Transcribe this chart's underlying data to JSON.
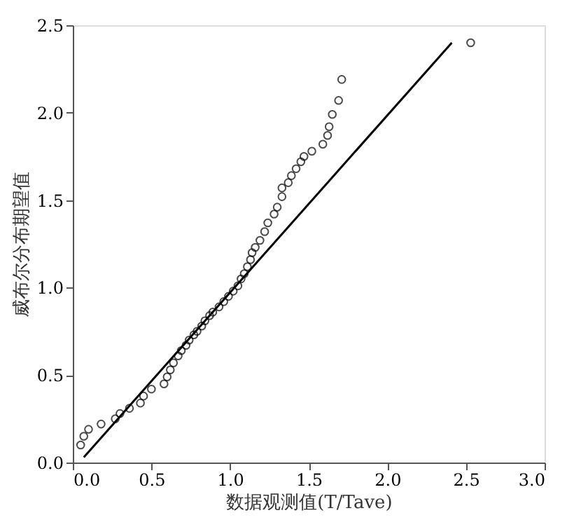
{
  "chart_data": {
    "type": "scatter",
    "xlabel": "数据观测值(T/Tave)",
    "ylabel": "威布尔分布期望值",
    "xlim": [
      0,
      3
    ],
    "ylim": [
      0,
      2.5
    ],
    "xticks": [
      {
        "value": 0,
        "label": "0.0"
      },
      0.5,
      {
        "value": 1,
        "label": "1.0"
      },
      1.5,
      {
        "value": 2,
        "label": "2.0"
      },
      2.5,
      {
        "value": 3,
        "label": "3.0"
      }
    ],
    "yticks": [
      {
        "value": 0,
        "label": "0.0"
      },
      0.5,
      {
        "value": 1,
        "label": "1.0"
      },
      1.5,
      {
        "value": 2,
        "label": "2.0"
      },
      2.5
    ],
    "grid": false,
    "legend": false,
    "series": [
      {
        "type": "scatter",
        "color": "#000000",
        "marker": "circle",
        "x": [
          0.05,
          0.07,
          0.1,
          0.18,
          0.27,
          0.3,
          0.36,
          0.43,
          0.45,
          0.5,
          0.58,
          0.6,
          0.62,
          0.64,
          0.67,
          0.69,
          0.72,
          0.74,
          0.77,
          0.79,
          0.82,
          0.84,
          0.87,
          0.89,
          0.93,
          0.96,
          0.99,
          1.02,
          1.05,
          1.07,
          1.09,
          1.11,
          1.13,
          1.14,
          1.16,
          1.19,
          1.22,
          1.24,
          1.28,
          1.3,
          1.33,
          1.33,
          1.37,
          1.39,
          1.42,
          1.45,
          1.47,
          1.52,
          1.59,
          1.62,
          1.63,
          1.65,
          1.69,
          1.71,
          2.53
        ],
        "values": [
          0.1,
          0.15,
          0.19,
          0.22,
          0.25,
          0.28,
          0.31,
          0.34,
          0.38,
          0.42,
          0.45,
          0.49,
          0.53,
          0.57,
          0.61,
          0.64,
          0.67,
          0.7,
          0.73,
          0.75,
          0.78,
          0.81,
          0.84,
          0.86,
          0.89,
          0.92,
          0.95,
          0.98,
          1.01,
          1.05,
          1.08,
          1.12,
          1.16,
          1.2,
          1.23,
          1.27,
          1.32,
          1.37,
          1.42,
          1.46,
          1.52,
          1.57,
          1.6,
          1.64,
          1.68,
          1.72,
          1.75,
          1.78,
          1.82,
          1.87,
          1.92,
          1.99,
          2.07,
          2.19,
          2.4
        ]
      },
      {
        "type": "line",
        "color": "#000000",
        "line_style": "solid",
        "x": [
          0.07,
          2.41
        ],
        "values": [
          0.03,
          2.4
        ]
      }
    ]
  }
}
